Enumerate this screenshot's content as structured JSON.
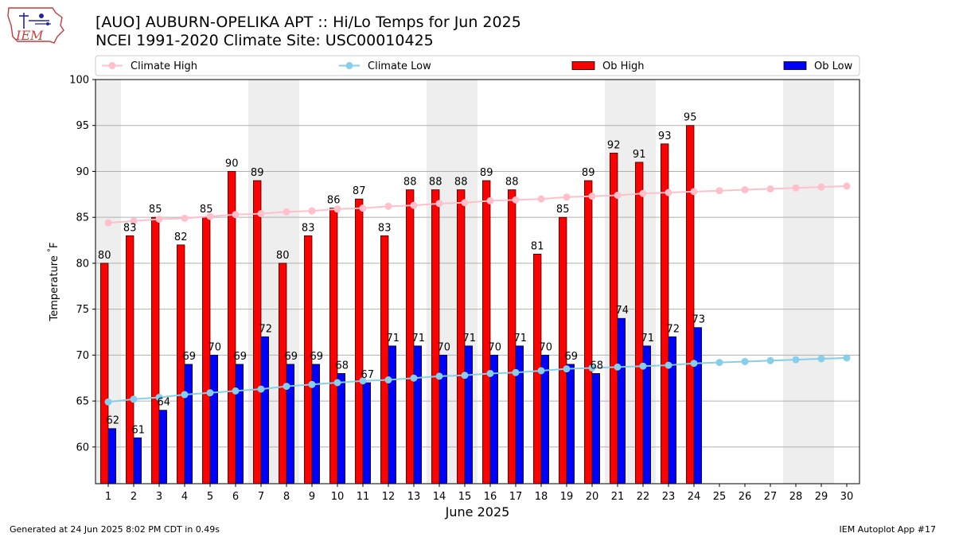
{
  "header": {
    "title_line1": "[AUO] AUBURN-OPELIKA APT :: Hi/Lo Temps for Jun 2025",
    "title_line2": "NCEI 1991-2020 Climate Site: USC00010425",
    "logo_text": "IEM"
  },
  "footer": {
    "generated": "Generated at 24 Jun 2025 8:02 PM CDT in 0.49s",
    "app": "IEM Autoplot App #17"
  },
  "colors": {
    "ob_high": "#ff0000",
    "ob_low": "#0000ff",
    "climate_high": "#ffc0cb",
    "climate_low": "#87ceeb",
    "weekend_shade": "#eeeeee",
    "grid": "#b0b0b0"
  },
  "chart_data": {
    "type": "bar",
    "title": "[AUO] AUBURN-OPELIKA APT :: Hi/Lo Temps for Jun 2025",
    "subtitle": "NCEI 1991-2020 Climate Site: USC00010425",
    "xlabel": "June 2025",
    "ylabel": "Temperature $^\\circ$F",
    "ylim": [
      56,
      100
    ],
    "yticks": [
      60,
      65,
      70,
      75,
      80,
      85,
      90,
      95,
      100
    ],
    "grid": true,
    "legend_position": "top",
    "days": [
      1,
      2,
      3,
      4,
      5,
      6,
      7,
      8,
      9,
      10,
      11,
      12,
      13,
      14,
      15,
      16,
      17,
      18,
      19,
      20,
      21,
      22,
      23,
      24,
      25,
      26,
      27,
      28,
      29,
      30
    ],
    "weekend_days": [
      1,
      7,
      8,
      14,
      15,
      21,
      22,
      28,
      29
    ],
    "series": [
      {
        "name": "Climate High",
        "kind": "line",
        "values": [
          84.4,
          84.6,
          84.8,
          84.9,
          85.1,
          85.3,
          85.4,
          85.6,
          85.7,
          85.9,
          86.0,
          86.2,
          86.3,
          86.5,
          86.6,
          86.8,
          86.9,
          87.0,
          87.2,
          87.3,
          87.4,
          87.6,
          87.7,
          87.8,
          87.9,
          88.0,
          88.1,
          88.2,
          88.3,
          88.4
        ]
      },
      {
        "name": "Climate Low",
        "kind": "line",
        "values": [
          64.9,
          65.2,
          65.4,
          65.7,
          65.9,
          66.1,
          66.3,
          66.6,
          66.8,
          67.0,
          67.2,
          67.3,
          67.5,
          67.7,
          67.8,
          68.0,
          68.1,
          68.3,
          68.5,
          68.6,
          68.7,
          68.8,
          68.9,
          69.1,
          69.2,
          69.3,
          69.4,
          69.5,
          69.6,
          69.7
        ]
      },
      {
        "name": "Ob High",
        "kind": "bar",
        "values": [
          80,
          83,
          85,
          82,
          85,
          90,
          89,
          80,
          83,
          86,
          87,
          83,
          88,
          88,
          88,
          89,
          88,
          81,
          85,
          89,
          92,
          91,
          93,
          95
        ]
      },
      {
        "name": "Ob Low",
        "kind": "bar",
        "values": [
          62,
          61,
          64,
          69,
          70,
          69,
          72,
          69,
          69,
          68,
          67,
          71,
          71,
          70,
          71,
          70,
          71,
          70,
          69,
          68,
          74,
          71,
          72,
          73
        ]
      }
    ]
  }
}
